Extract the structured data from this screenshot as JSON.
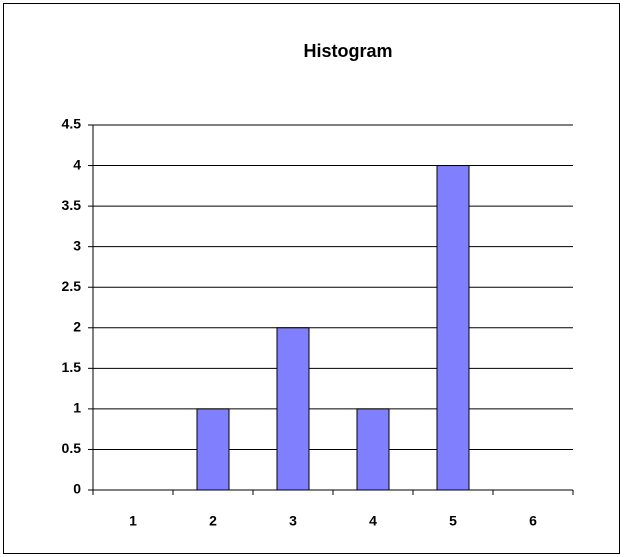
{
  "chart_data": {
    "type": "bar",
    "title": "Histogram",
    "categories": [
      "1",
      "2",
      "3",
      "4",
      "5",
      "6"
    ],
    "values": [
      0,
      1,
      2,
      1,
      4,
      0
    ],
    "color": "#8080ff",
    "ylim": [
      0,
      4.5
    ],
    "yticks": [
      0,
      0.5,
      1,
      1.5,
      2,
      2.5,
      3,
      3.5,
      4,
      4.5
    ],
    "grid": true
  }
}
